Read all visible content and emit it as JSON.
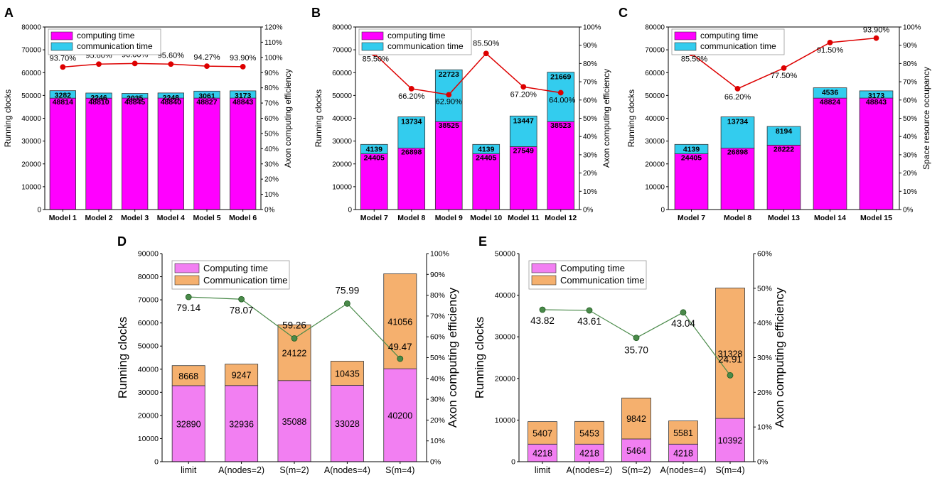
{
  "chart_data": [
    {
      "type": "bar",
      "panel_label": "A",
      "style": "top",
      "categories": [
        "Model 1",
        "Model 2",
        "Model 3",
        "Model 4",
        "Model 5",
        "Model 6"
      ],
      "series": [
        {
          "name": "computing time",
          "color": "#ff00ff",
          "values": [
            48814,
            48810,
            48845,
            48840,
            48827,
            48843
          ]
        },
        {
          "name": "communication time",
          "color": "#33ccee",
          "values": [
            3282,
            2246,
            2035,
            2248,
            3061,
            3173
          ]
        }
      ],
      "line": {
        "name": "Axon computing efficiency",
        "color": "#dd0000",
        "values": [
          93.7,
          95.6,
          96.0,
          95.6,
          94.27,
          93.9
        ],
        "labels": [
          "93.70%",
          "95.60%",
          "96.00%",
          "95.60%",
          "94.27%",
          "93.90%"
        ]
      },
      "ylabel": "Running clocks",
      "y2label": "Axon computing efficiency",
      "ylim": [
        0,
        80000
      ],
      "yticks": [
        0,
        10000,
        20000,
        30000,
        40000,
        50000,
        60000,
        70000,
        80000
      ],
      "y2lim": [
        0,
        120
      ],
      "y2ticks": [
        "0%",
        "10%",
        "20%",
        "30%",
        "40%",
        "50%",
        "60%",
        "70%",
        "80%",
        "90%",
        "100%",
        "110%",
        "120%"
      ]
    },
    {
      "type": "bar",
      "panel_label": "B",
      "style": "top",
      "categories": [
        "Model 7",
        "Model 8",
        "Model 9",
        "Model 10",
        "Model 11",
        "Model 12"
      ],
      "series": [
        {
          "name": "computing time",
          "color": "#ff00ff",
          "values": [
            24405,
            26898,
            38525,
            24405,
            27549,
            38523
          ]
        },
        {
          "name": "communication time",
          "color": "#33ccee",
          "values": [
            4139,
            13734,
            22723,
            4139,
            13447,
            21669
          ]
        }
      ],
      "line": {
        "name": "Axon computing efficiency",
        "color": "#dd0000",
        "values": [
          85.5,
          66.2,
          62.9,
          85.5,
          67.2,
          64.0
        ],
        "labels": [
          "85.50%",
          "66.20%",
          "62.90%",
          "85.50%",
          "67.20%",
          "64.00%"
        ]
      },
      "ylabel": "Running clocks",
      "y2label": "Axon computing efficiency",
      "ylim": [
        0,
        80000
      ],
      "yticks": [
        0,
        10000,
        20000,
        30000,
        40000,
        50000,
        60000,
        70000,
        80000
      ],
      "y2lim": [
        0,
        100
      ],
      "y2ticks": [
        "0%",
        "10%",
        "20%",
        "30%",
        "40%",
        "50%",
        "60%",
        "70%",
        "80%",
        "90%",
        "100%"
      ]
    },
    {
      "type": "bar",
      "panel_label": "C",
      "style": "top",
      "categories": [
        "Model 7",
        "Model 8",
        "Model 13",
        "Model 14",
        "Model 15"
      ],
      "series": [
        {
          "name": "computing time",
          "color": "#ff00ff",
          "values": [
            24405,
            26898,
            28222,
            48824,
            48843
          ]
        },
        {
          "name": "communication time",
          "color": "#33ccee",
          "values": [
            4139,
            13734,
            8194,
            4536,
            3173
          ]
        }
      ],
      "line": {
        "name": "Space resource occupancy",
        "color": "#dd0000",
        "values": [
          85.5,
          66.2,
          77.5,
          91.5,
          93.9
        ],
        "labels": [
          "85.50%",
          "66.20%",
          "77.50%",
          "91.50%",
          "93.90%"
        ]
      },
      "ylabel": "Running clocks",
      "y2label": "Space resource occupancy",
      "ylim": [
        0,
        80000
      ],
      "yticks": [
        0,
        10000,
        20000,
        30000,
        40000,
        50000,
        60000,
        70000,
        80000
      ],
      "y2lim": [
        0,
        100
      ],
      "y2ticks": [
        "0%",
        "10%",
        "20%",
        "30%",
        "40%",
        "50%",
        "60%",
        "70%",
        "80%",
        "90%",
        "100%"
      ]
    },
    {
      "type": "bar",
      "panel_label": "D",
      "style": "bottom",
      "categories": [
        "limit",
        "A(nodes=2)",
        "S(m=2)",
        "A(nodes=4)",
        "S(m=4)"
      ],
      "series": [
        {
          "name": "Computing time",
          "color": "#f27ff2",
          "values": [
            32890,
            32936,
            35088,
            33028,
            40200
          ]
        },
        {
          "name": "Communication time",
          "color": "#f5b06e",
          "values": [
            8668,
            9247,
            24122,
            10435,
            41056
          ]
        }
      ],
      "line": {
        "name": "Axon computing efficiency",
        "color": "#4a8a4a",
        "values": [
          79.14,
          78.07,
          59.26,
          75.99,
          49.47
        ],
        "labels": [
          "79.14",
          "78.07",
          "59.26",
          "75.99",
          "49.47"
        ]
      },
      "ylabel": "Running clocks",
      "y2label": "Axon computing efficiency",
      "ylim": [
        0,
        90000
      ],
      "yticks": [
        0,
        10000,
        20000,
        30000,
        40000,
        50000,
        60000,
        70000,
        80000,
        90000
      ],
      "y2lim": [
        0,
        100
      ],
      "y2ticks": [
        "0%",
        "10%",
        "20%",
        "30%",
        "40%",
        "50%",
        "60%",
        "70%",
        "80%",
        "90%",
        "100%"
      ]
    },
    {
      "type": "bar",
      "panel_label": "E",
      "style": "bottom",
      "categories": [
        "limit",
        "A(nodes=2)",
        "S(m=2)",
        "A(nodes=4)",
        "S(m=4)"
      ],
      "series": [
        {
          "name": "Computing time",
          "color": "#f27ff2",
          "values": [
            4218,
            4218,
            5464,
            4218,
            10392
          ]
        },
        {
          "name": "Communication time",
          "color": "#f5b06e",
          "values": [
            5407,
            5453,
            9842,
            5581,
            31328
          ]
        }
      ],
      "line": {
        "name": "Axon computing efficiency",
        "color": "#4a8a4a",
        "values": [
          43.82,
          43.61,
          35.7,
          43.04,
          24.91
        ],
        "labels": [
          "43.82",
          "43.61",
          "35.70",
          "43.04",
          "24.91"
        ]
      },
      "ylabel": "Running clocks",
      "y2label": "Axon computing efficiency",
      "ylim": [
        0,
        50000
      ],
      "yticks": [
        0,
        10000,
        20000,
        30000,
        40000,
        50000
      ],
      "y2lim": [
        0,
        60
      ],
      "y2ticks": [
        "0%",
        "10%",
        "20%",
        "30%",
        "40%",
        "50%",
        "60%"
      ]
    }
  ]
}
